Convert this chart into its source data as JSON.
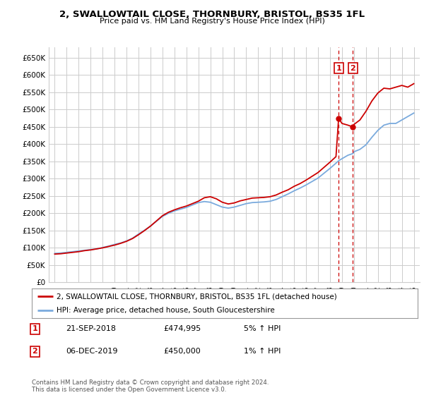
{
  "title": "2, SWALLOWTAIL CLOSE, THORNBURY, BRISTOL, BS35 1FL",
  "subtitle": "Price paid vs. HM Land Registry's House Price Index (HPI)",
  "legend_line1": "2, SWALLOWTAIL CLOSE, THORNBURY, BRISTOL, BS35 1FL (detached house)",
  "legend_line2": "HPI: Average price, detached house, South Gloucestershire",
  "annotation1_date": "21-SEP-2018",
  "annotation1_price": "£474,995",
  "annotation1_hpi": "5% ↑ HPI",
  "annotation2_date": "06-DEC-2019",
  "annotation2_price": "£450,000",
  "annotation2_hpi": "1% ↑ HPI",
  "footer": "Contains HM Land Registry data © Crown copyright and database right 2024.\nThis data is licensed under the Open Government Licence v3.0.",
  "sale1_year": 2018.72,
  "sale2_year": 2019.92,
  "sale1_price": 474995,
  "sale2_price": 450000,
  "hpi_color": "#7aaadd",
  "price_color": "#cc0000",
  "marker_box_color": "#cc0000",
  "dashed_line_color": "#cc0000",
  "background_color": "#ffffff",
  "grid_color": "#cccccc",
  "ylim": [
    0,
    680000
  ],
  "xlim": [
    1994.5,
    2025.5
  ],
  "yticks": [
    0,
    50000,
    100000,
    150000,
    200000,
    250000,
    300000,
    350000,
    400000,
    450000,
    500000,
    550000,
    600000,
    650000
  ],
  "ytick_labels": [
    "£0",
    "£50K",
    "£100K",
    "£150K",
    "£200K",
    "£250K",
    "£300K",
    "£350K",
    "£400K",
    "£450K",
    "£500K",
    "£550K",
    "£600K",
    "£650K"
  ],
  "hpi_years": [
    1995,
    1995.5,
    1996,
    1996.5,
    1997,
    1997.5,
    1998,
    1998.5,
    1999,
    1999.5,
    2000,
    2000.5,
    2001,
    2001.5,
    2002,
    2002.5,
    2003,
    2003.5,
    2004,
    2004.5,
    2005,
    2005.5,
    2006,
    2006.5,
    2007,
    2007.5,
    2008,
    2008.5,
    2009,
    2009.5,
    2010,
    2010.5,
    2011,
    2011.5,
    2012,
    2012.5,
    2013,
    2013.5,
    2014,
    2014.5,
    2015,
    2015.5,
    2016,
    2016.5,
    2017,
    2017.5,
    2018,
    2018.5,
    2018.72,
    2019,
    2019.5,
    2019.92,
    2020,
    2020.5,
    2021,
    2021.5,
    2022,
    2022.5,
    2023,
    2023.5,
    2024,
    2024.5,
    2025
  ],
  "hpi_values": [
    84000,
    85000,
    87000,
    89000,
    91000,
    93000,
    95000,
    97000,
    101000,
    105000,
    110000,
    114000,
    120000,
    128000,
    140000,
    151000,
    163000,
    177000,
    191000,
    200000,
    207000,
    212000,
    217000,
    224000,
    231000,
    234000,
    232000,
    225000,
    218000,
    215000,
    218000,
    223000,
    228000,
    231000,
    232000,
    233000,
    235000,
    240000,
    248000,
    256000,
    265000,
    273000,
    282000,
    292000,
    302000,
    316000,
    330000,
    345000,
    352000,
    358000,
    368000,
    373000,
    378000,
    385000,
    398000,
    420000,
    440000,
    455000,
    460000,
    460000,
    470000,
    480000,
    490000
  ],
  "price_years": [
    1995,
    1995.5,
    1996,
    1996.5,
    1997,
    1997.5,
    1998,
    1998.5,
    1999,
    1999.5,
    2000,
    2000.5,
    2001,
    2001.5,
    2002,
    2002.5,
    2003,
    2003.5,
    2004,
    2004.5,
    2005,
    2005.5,
    2006,
    2006.5,
    2007,
    2007.5,
    2008,
    2008.5,
    2009,
    2009.5,
    2010,
    2010.5,
    2011,
    2011.5,
    2012,
    2012.5,
    2013,
    2013.5,
    2014,
    2014.5,
    2015,
    2015.5,
    2016,
    2016.5,
    2017,
    2017.5,
    2018,
    2018.5,
    2018.72,
    2019,
    2019.5,
    2019.92,
    2020,
    2020.5,
    2021,
    2021.5,
    2022,
    2022.5,
    2023,
    2023.5,
    2024,
    2024.5,
    2025
  ],
  "price_values": [
    82000,
    83000,
    85000,
    87000,
    89000,
    92000,
    94000,
    97000,
    100000,
    104000,
    108000,
    113000,
    119000,
    127000,
    138000,
    150000,
    163000,
    178000,
    193000,
    203000,
    210000,
    216000,
    221000,
    228000,
    235000,
    245000,
    248000,
    242000,
    232000,
    227000,
    230000,
    236000,
    240000,
    244000,
    245000,
    246000,
    248000,
    253000,
    261000,
    268000,
    278000,
    286000,
    296000,
    307000,
    318000,
    333000,
    348000,
    364000,
    474995,
    460000,
    455000,
    450000,
    457000,
    470000,
    495000,
    525000,
    548000,
    562000,
    560000,
    565000,
    570000,
    565000,
    575000
  ]
}
